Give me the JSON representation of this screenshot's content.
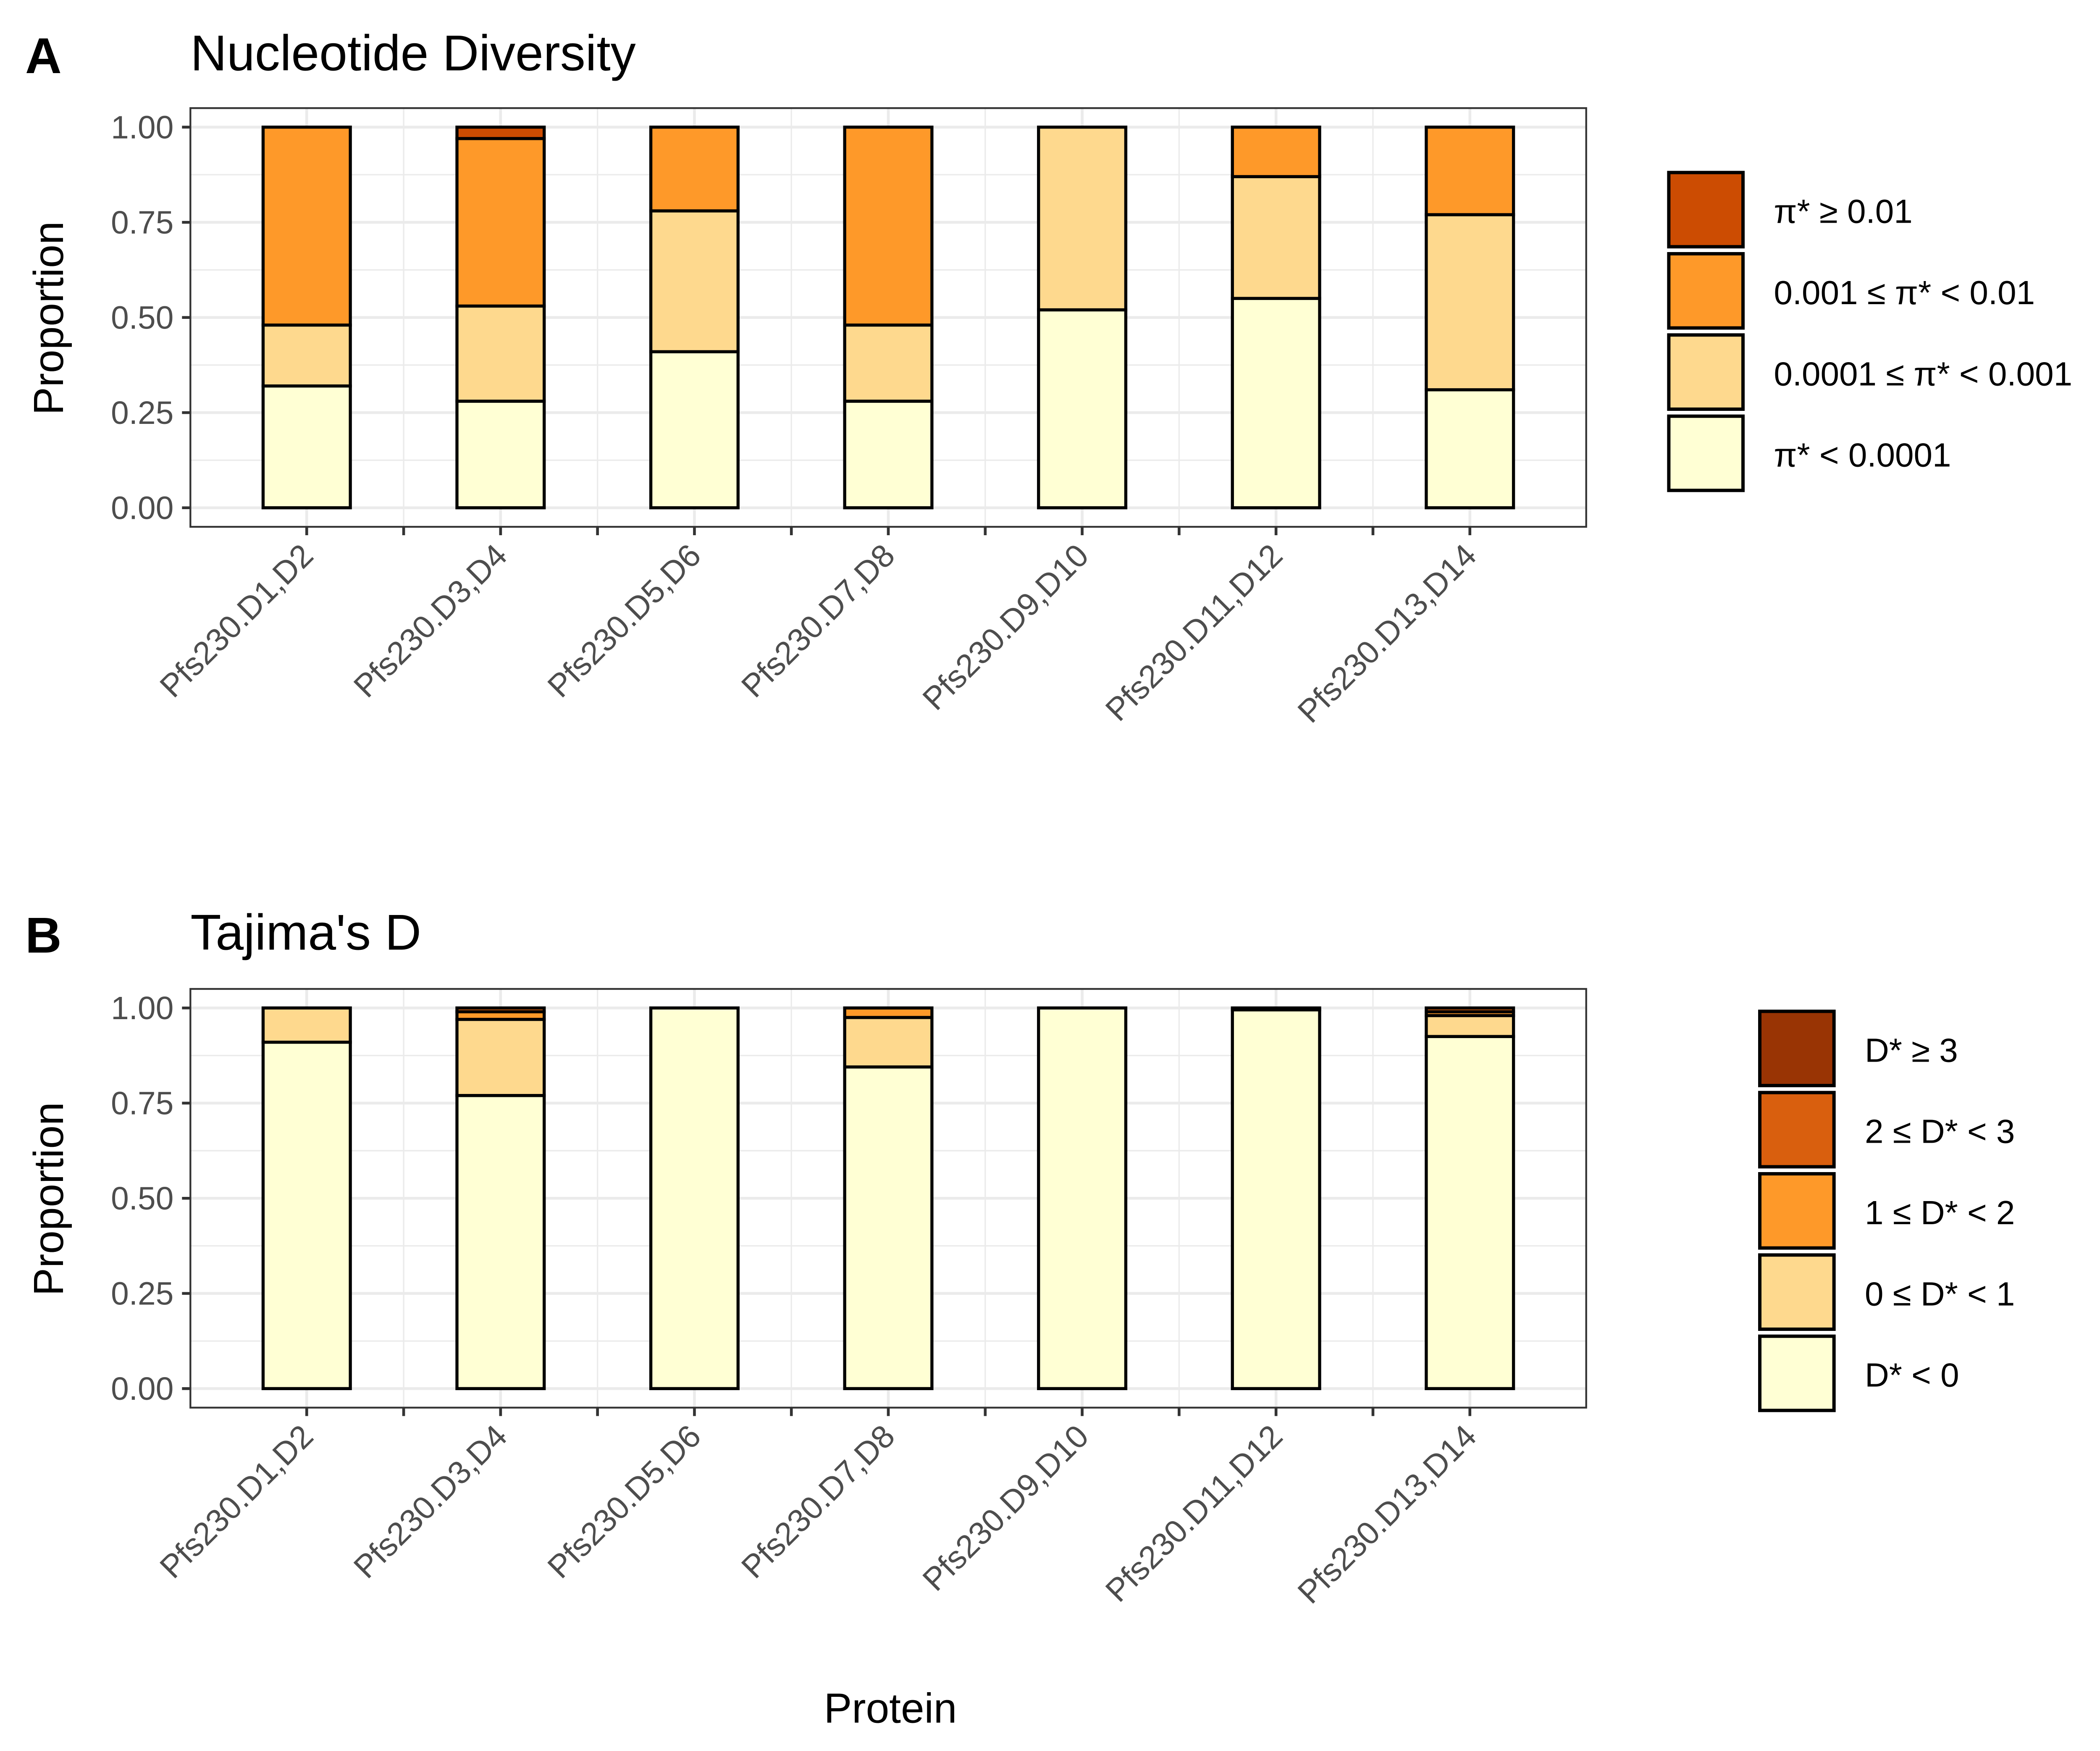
{
  "panels": [
    {
      "letter": "A",
      "title": "Nucleotide Diversity"
    },
    {
      "letter": "B",
      "title": "Tajima's D"
    }
  ],
  "x_axis_title": "Protein",
  "chart_data": [
    {
      "type": "bar",
      "stacked": true,
      "title": "Nucleotide Diversity",
      "xlabel": "",
      "ylabel": "Proportion",
      "ylim": [
        0,
        1
      ],
      "yticks": [
        "0.00",
        "0.25",
        "0.50",
        "0.75",
        "1.00"
      ],
      "categories": [
        "Pfs230.D1,D2",
        "Pfs230.D3,D4",
        "Pfs230.D5,D6",
        "Pfs230.D7,D8",
        "Pfs230.D9,D10",
        "Pfs230.D11,D12",
        "Pfs230.D13,D14"
      ],
      "legend_position": "right",
      "grid": true,
      "series": [
        {
          "name": "π* < 0.0001",
          "color": "#FFFFD4",
          "values": [
            0.32,
            0.28,
            0.41,
            0.28,
            0.52,
            0.55,
            0.31
          ]
        },
        {
          "name": "0.0001 ≤ π* < 0.001",
          "color": "#FED98E",
          "values": [
            0.16,
            0.25,
            0.37,
            0.2,
            0.48,
            0.32,
            0.46
          ]
        },
        {
          "name": "0.001 ≤ π* < 0.01",
          "color": "#FE9929",
          "values": [
            0.52,
            0.44,
            0.22,
            0.52,
            0.0,
            0.13,
            0.23
          ]
        },
        {
          "name": "π* ≥ 0.01",
          "color": "#CC4C02",
          "values": [
            0.0,
            0.03,
            0.0,
            0.0,
            0.0,
            0.0,
            0.0
          ]
        }
      ]
    },
    {
      "type": "bar",
      "stacked": true,
      "title": "Tajima's D",
      "xlabel": "Protein",
      "ylabel": "Proportion",
      "ylim": [
        0,
        1
      ],
      "yticks": [
        "0.00",
        "0.25",
        "0.50",
        "0.75",
        "1.00"
      ],
      "categories": [
        "Pfs230.D1,D2",
        "Pfs230.D3,D4",
        "Pfs230.D5,D6",
        "Pfs230.D7,D8",
        "Pfs230.D9,D10",
        "Pfs230.D11,D12",
        "Pfs230.D13,D14"
      ],
      "legend_position": "right",
      "grid": true,
      "series": [
        {
          "name": "D* < 0",
          "color": "#FFFFD4",
          "values": [
            0.91,
            0.77,
            1.0,
            0.845,
            1.0,
            0.995,
            0.925
          ]
        },
        {
          "name": "0 ≤ D* < 1",
          "color": "#FED98E",
          "values": [
            0.09,
            0.2,
            0.0,
            0.13,
            0.0,
            0.0,
            0.055
          ]
        },
        {
          "name": "1 ≤ D* < 2",
          "color": "#FE9929",
          "values": [
            0.0,
            0.02,
            0.0,
            0.025,
            0.0,
            0.0,
            0.01
          ]
        },
        {
          "name": "2 ≤ D* < 3",
          "color": "#D95F0E",
          "values": [
            0.0,
            0.01,
            0.0,
            0.0,
            0.0,
            0.005,
            0.01
          ]
        },
        {
          "name": "D* ≥ 3",
          "color": "#993404",
          "values": [
            0.0,
            0.0,
            0.0,
            0.0,
            0.0,
            0.0,
            0.0
          ]
        }
      ]
    }
  ]
}
